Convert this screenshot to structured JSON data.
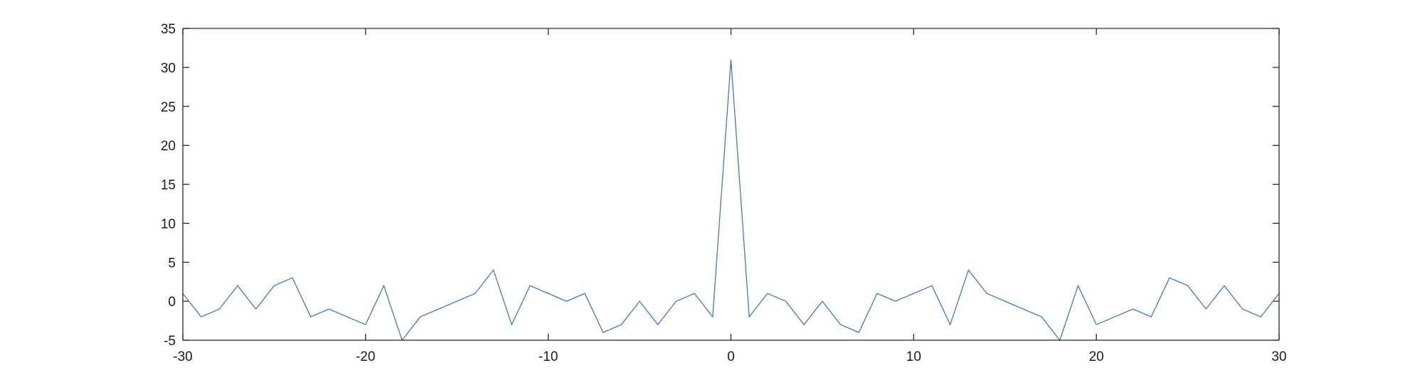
{
  "chart_data": {
    "type": "line",
    "title": "",
    "xlabel": "",
    "ylabel": "",
    "xlim": [
      -30,
      30
    ],
    "ylim": [
      -5,
      35
    ],
    "xticks": [
      -30,
      -20,
      -10,
      0,
      10,
      20,
      30
    ],
    "yticks": [
      -5,
      0,
      5,
      10,
      15,
      20,
      25,
      30,
      35
    ],
    "grid": false,
    "box": true,
    "series": [
      {
        "color": "#4477c4",
        "x": [
          -30,
          -29,
          -28,
          -27,
          -26,
          -25,
          -24,
          -23,
          -22,
          -21,
          -20,
          -19,
          -18,
          -17,
          -16,
          -15,
          -14,
          -13,
          -12,
          -11,
          -10,
          -9,
          -8,
          -7,
          -6,
          -5,
          -4,
          -3,
          -2,
          -1,
          0,
          1,
          2,
          3,
          4,
          5,
          6,
          7,
          8,
          9,
          10,
          11,
          12,
          13,
          14,
          15,
          16,
          17,
          18,
          19,
          20,
          21,
          22,
          23,
          24,
          25,
          26,
          27,
          28,
          29,
          30
        ],
        "y": [
          1,
          -2,
          -1,
          2,
          -1,
          2,
          3,
          -2,
          -1,
          -2,
          -3,
          2,
          -5,
          -2,
          -1,
          0,
          1,
          4,
          -3,
          2,
          1,
          0,
          1,
          -4,
          -3,
          0,
          -3,
          0,
          1,
          -2,
          31,
          -2,
          1,
          0,
          -3,
          0,
          -3,
          -4,
          1,
          0,
          1,
          2,
          -3,
          4,
          1,
          0,
          -1,
          -2,
          -5,
          2,
          -3,
          -2,
          -1,
          -2,
          3,
          2,
          -1,
          2,
          -1,
          -2,
          1
        ]
      }
    ]
  }
}
